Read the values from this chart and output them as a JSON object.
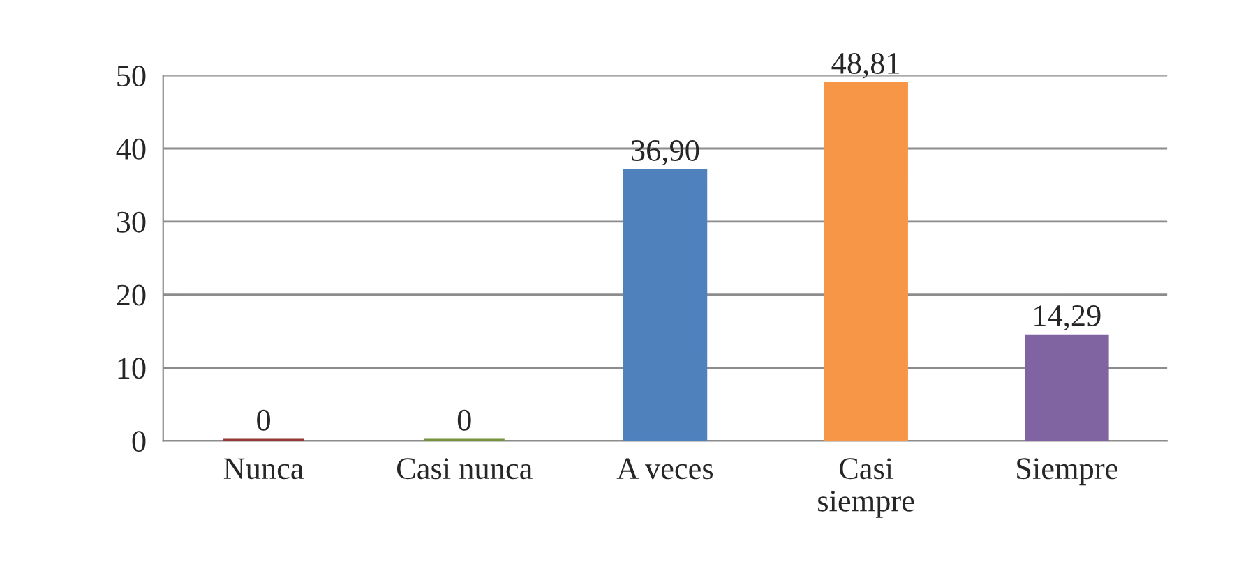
{
  "chart_data": {
    "type": "bar",
    "categories": [
      "Nunca",
      "Casi nunca",
      "A veces",
      "Casi\nsiempre",
      "Siempre"
    ],
    "values": [
      0,
      0,
      36.9,
      48.81,
      14.29
    ],
    "colors": [
      "#953735",
      "#77933c",
      "#4f81bd",
      "#f79646",
      "#8064a2"
    ],
    "value_labels": [
      "0",
      "0",
      "36,90",
      "48,81",
      "14,29"
    ],
    "ylim": [
      0,
      50
    ],
    "yticks": [
      0,
      10,
      20,
      30,
      40,
      50
    ],
    "grid": "y",
    "legend": false
  }
}
